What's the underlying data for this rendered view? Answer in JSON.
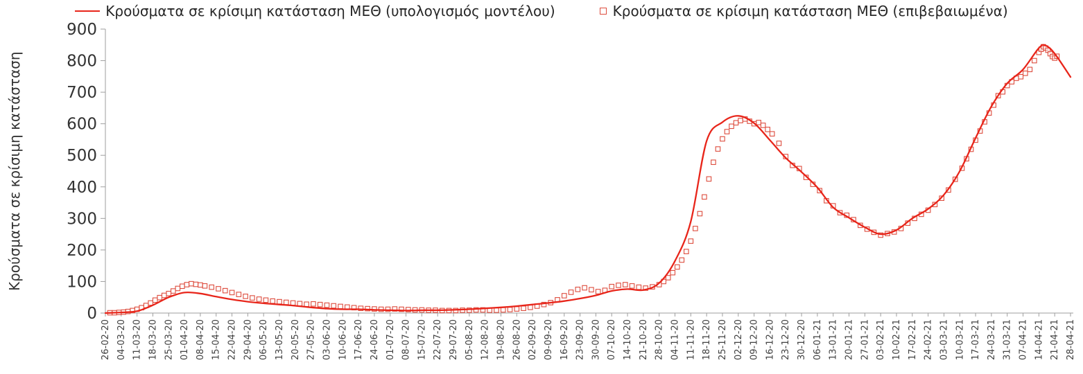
{
  "chart_data": {
    "type": "line",
    "title": "",
    "ylabel": "Κρούσματα σε κρίσιμη κατάσταση",
    "xlabel": "",
    "ylim": [
      0,
      900
    ],
    "yticks": [
      0,
      100,
      200,
      300,
      400,
      500,
      600,
      700,
      800,
      900
    ],
    "grid": "off",
    "legend_position": "top-center",
    "axis_color": "#9e9e9e",
    "text_color": "#333333",
    "x_tick_interval_days": 7,
    "x_max_day": 427,
    "x_tick_labels": [
      "26-02-20",
      "04-03-20",
      "11-03-20",
      "18-03-20",
      "25-03-20",
      "01-04-20",
      "08-04-20",
      "15-04-20",
      "22-04-20",
      "29-04-20",
      "06-05-20",
      "13-05-20",
      "20-05-20",
      "27-05-20",
      "03-06-20",
      "10-06-20",
      "17-06-20",
      "24-06-20",
      "01-07-20",
      "08-07-20",
      "15-07-20",
      "22-07-20",
      "29-07-20",
      "05-08-20",
      "12-08-20",
      "19-08-20",
      "26-08-20",
      "02-09-20",
      "09-09-20",
      "16-09-20",
      "23-09-20",
      "30-09-20",
      "07-10-20",
      "14-10-20",
      "21-10-20",
      "28-10-20",
      "04-11-20",
      "11-11-20",
      "18-11-20",
      "25-11-20",
      "02-12-20",
      "09-12-20",
      "16-12-20",
      "23-12-20",
      "30-12-20",
      "06-01-21",
      "13-01-21",
      "20-01-21",
      "27-01-21",
      "03-02-21",
      "10-02-21",
      "17-02-21",
      "24-02-21",
      "03-03-21",
      "10-03-21",
      "17-03-21",
      "24-03-21",
      "31-03-21",
      "07-04-21",
      "14-04-21",
      "21-04-21",
      "28-04-21"
    ],
    "series": [
      {
        "name": "Κρούσματα σε κρίσιμη κατάσταση ΜΕΘ (υπολογισμός μοντέλου)",
        "type": "line",
        "color": "#e8251a",
        "x_days": [
          0,
          7,
          14,
          21,
          28,
          35,
          42,
          49,
          56,
          63,
          70,
          77,
          84,
          91,
          98,
          105,
          112,
          119,
          126,
          133,
          140,
          147,
          154,
          161,
          168,
          175,
          182,
          189,
          196,
          203,
          210,
          217,
          224,
          231,
          238,
          245,
          252,
          259,
          266,
          273,
          280,
          287,
          294,
          301,
          308,
          315,
          322,
          329,
          336,
          343,
          350,
          357,
          364,
          371,
          378,
          385,
          392,
          399,
          406,
          413,
          416,
          420,
          427
        ],
        "values": [
          0,
          2,
          6,
          25,
          50,
          65,
          62,
          52,
          43,
          36,
          31,
          27,
          23,
          18,
          14,
          12,
          12,
          10,
          9,
          8,
          9,
          9,
          10,
          12,
          15,
          18,
          22,
          27,
          32,
          38,
          46,
          56,
          70,
          76,
          73,
          95,
          165,
          290,
          545,
          605,
          625,
          602,
          548,
          492,
          447,
          398,
          335,
          302,
          272,
          250,
          263,
          300,
          330,
          375,
          450,
          555,
          655,
          728,
          772,
          840,
          848,
          822,
          748
        ]
      },
      {
        "name": "Κρούσματα σε κρίσιμη κατάσταση ΜΕΘ (επιβεβαιωμένα)",
        "type": "scatter",
        "marker": "open-square",
        "color": "#dd4b3c",
        "x_days": [
          2,
          4,
          6,
          8,
          10,
          12,
          14,
          16,
          18,
          20,
          22,
          24,
          26,
          28,
          30,
          32,
          34,
          36,
          38,
          40,
          42,
          44,
          47,
          50,
          53,
          56,
          59,
          62,
          65,
          68,
          71,
          74,
          77,
          80,
          83,
          86,
          89,
          92,
          95,
          98,
          101,
          104,
          107,
          110,
          113,
          116,
          119,
          122,
          125,
          128,
          131,
          134,
          137,
          140,
          143,
          146,
          149,
          152,
          155,
          158,
          161,
          164,
          167,
          170,
          173,
          176,
          179,
          182,
          185,
          188,
          191,
          194,
          197,
          200,
          203,
          206,
          209,
          212,
          215,
          218,
          221,
          224,
          227,
          230,
          233,
          236,
          239,
          242,
          245,
          247,
          249,
          251,
          253,
          255,
          257,
          259,
          261,
          263,
          265,
          267,
          269,
          271,
          273,
          275,
          277,
          279,
          281,
          283,
          285,
          287,
          289,
          291,
          293,
          295,
          298,
          301,
          304,
          307,
          310,
          313,
          316,
          319,
          322,
          325,
          328,
          331,
          334,
          337,
          340,
          343,
          346,
          349,
          352,
          355,
          358,
          361,
          364,
          367,
          370,
          373,
          376,
          379,
          381,
          383,
          385,
          387,
          389,
          391,
          393,
          395,
          397,
          399,
          401,
          403,
          405,
          407,
          409,
          411,
          413,
          414,
          415,
          416,
          417,
          418,
          419,
          420,
          421
        ],
        "values": [
          1,
          1,
          2,
          3,
          5,
          8,
          12,
          17,
          24,
          32,
          41,
          49,
          56,
          62,
          70,
          78,
          85,
          90,
          93,
          91,
          89,
          86,
          82,
          77,
          71,
          65,
          59,
          53,
          48,
          44,
          41,
          38,
          36,
          34,
          32,
          30,
          28,
          29,
          27,
          25,
          23,
          21,
          19,
          17,
          15,
          14,
          13,
          12,
          12,
          13,
          12,
          11,
          10,
          10,
          9,
          9,
          8,
          8,
          8,
          9,
          9,
          10,
          10,
          9,
          9,
          10,
          11,
          13,
          15,
          18,
          22,
          27,
          33,
          42,
          55,
          66,
          75,
          80,
          74,
          68,
          72,
          84,
          88,
          90,
          86,
          82,
          79,
          83,
          90,
          100,
          112,
          128,
          146,
          168,
          195,
          228,
          268,
          315,
          368,
          425,
          478,
          520,
          552,
          575,
          592,
          603,
          610,
          615,
          608,
          600,
          604,
          595,
          582,
          568,
          538,
          496,
          468,
          458,
          430,
          408,
          388,
          356,
          340,
          318,
          310,
          296,
          278,
          266,
          256,
          247,
          252,
          257,
          268,
          285,
          300,
          313,
          326,
          344,
          364,
          390,
          424,
          459,
          489,
          519,
          548,
          577,
          606,
          634,
          659,
          689,
          701,
          721,
          733,
          744,
          749,
          760,
          772,
          800,
          826,
          836,
          844,
          840,
          833,
          822,
          813,
          808,
          814
        ]
      }
    ]
  }
}
